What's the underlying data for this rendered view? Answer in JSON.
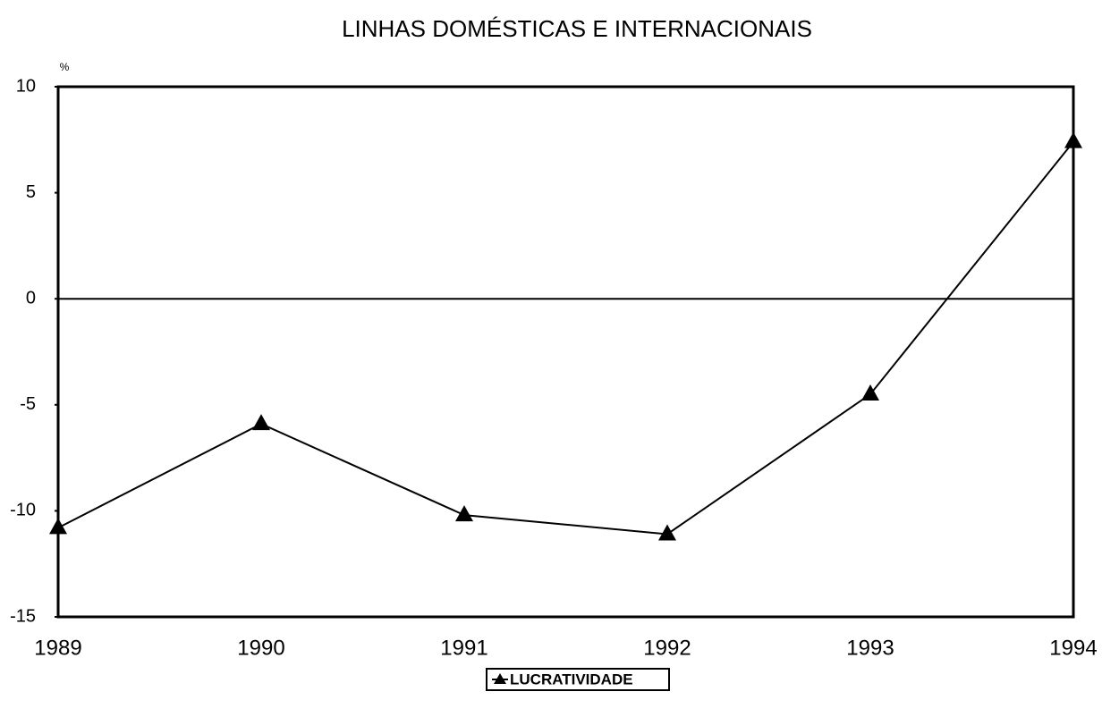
{
  "chart_data": {
    "type": "line",
    "title": "LINHAS  DOMÉSTICAS E INTERNACIONAIS",
    "y_label": "%",
    "categories": [
      "1989",
      "1990",
      "1991",
      "1992",
      "1993",
      "1994"
    ],
    "series": [
      {
        "name": "LUCRATIVIDADE",
        "color": "#000000",
        "values": [
          -10.8,
          -5.9,
          -10.2,
          -11.1,
          -4.5,
          7.4
        ]
      }
    ],
    "ylim": [
      -15,
      10
    ],
    "yticks": [
      10,
      5,
      0,
      -5,
      -10,
      -15
    ],
    "grid": false
  }
}
